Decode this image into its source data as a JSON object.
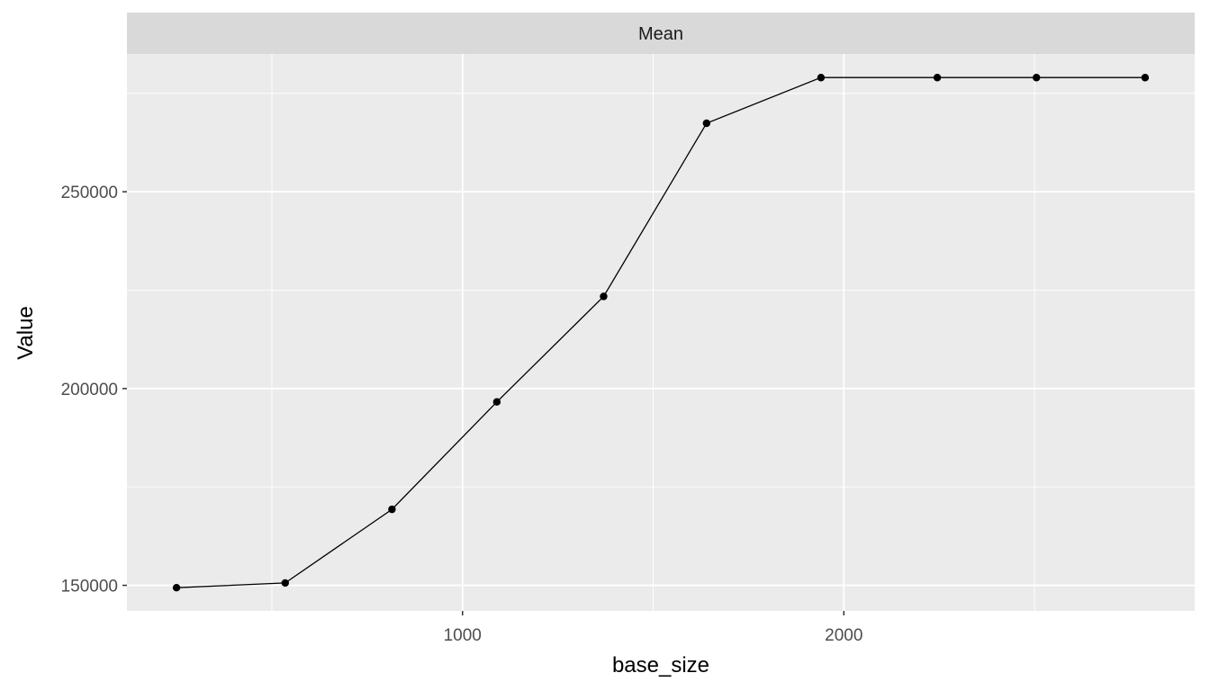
{
  "chart_data": {
    "type": "line",
    "facet_title": "Mean",
    "xlabel": "base_size",
    "ylabel": "Value",
    "xlim": [
      120,
      2920
    ],
    "ylim": [
      143500,
      285000
    ],
    "x_major_ticks": [
      1000,
      2000
    ],
    "x_minor_ticks": [
      500,
      1500,
      2500
    ],
    "x_tick_labels": [
      "1000",
      "2000"
    ],
    "y_major_ticks": [
      150000,
      200000,
      250000
    ],
    "y_minor_ticks": [
      175000,
      225000,
      275000
    ],
    "y_tick_labels": [
      "150000",
      "200000",
      "250000"
    ],
    "grid": true,
    "series": [
      {
        "x": [
          250,
          535,
          815,
          1090,
          1370,
          1640,
          1940,
          2245,
          2505,
          2790
        ],
        "y": [
          149400,
          150600,
          169300,
          196600,
          223400,
          267400,
          279000,
          279000,
          279000,
          279000
        ]
      }
    ],
    "colors": {
      "panel": "#ebebeb",
      "strip": "#d9d9d9",
      "grid": "#ffffff",
      "line": "#000000"
    }
  }
}
